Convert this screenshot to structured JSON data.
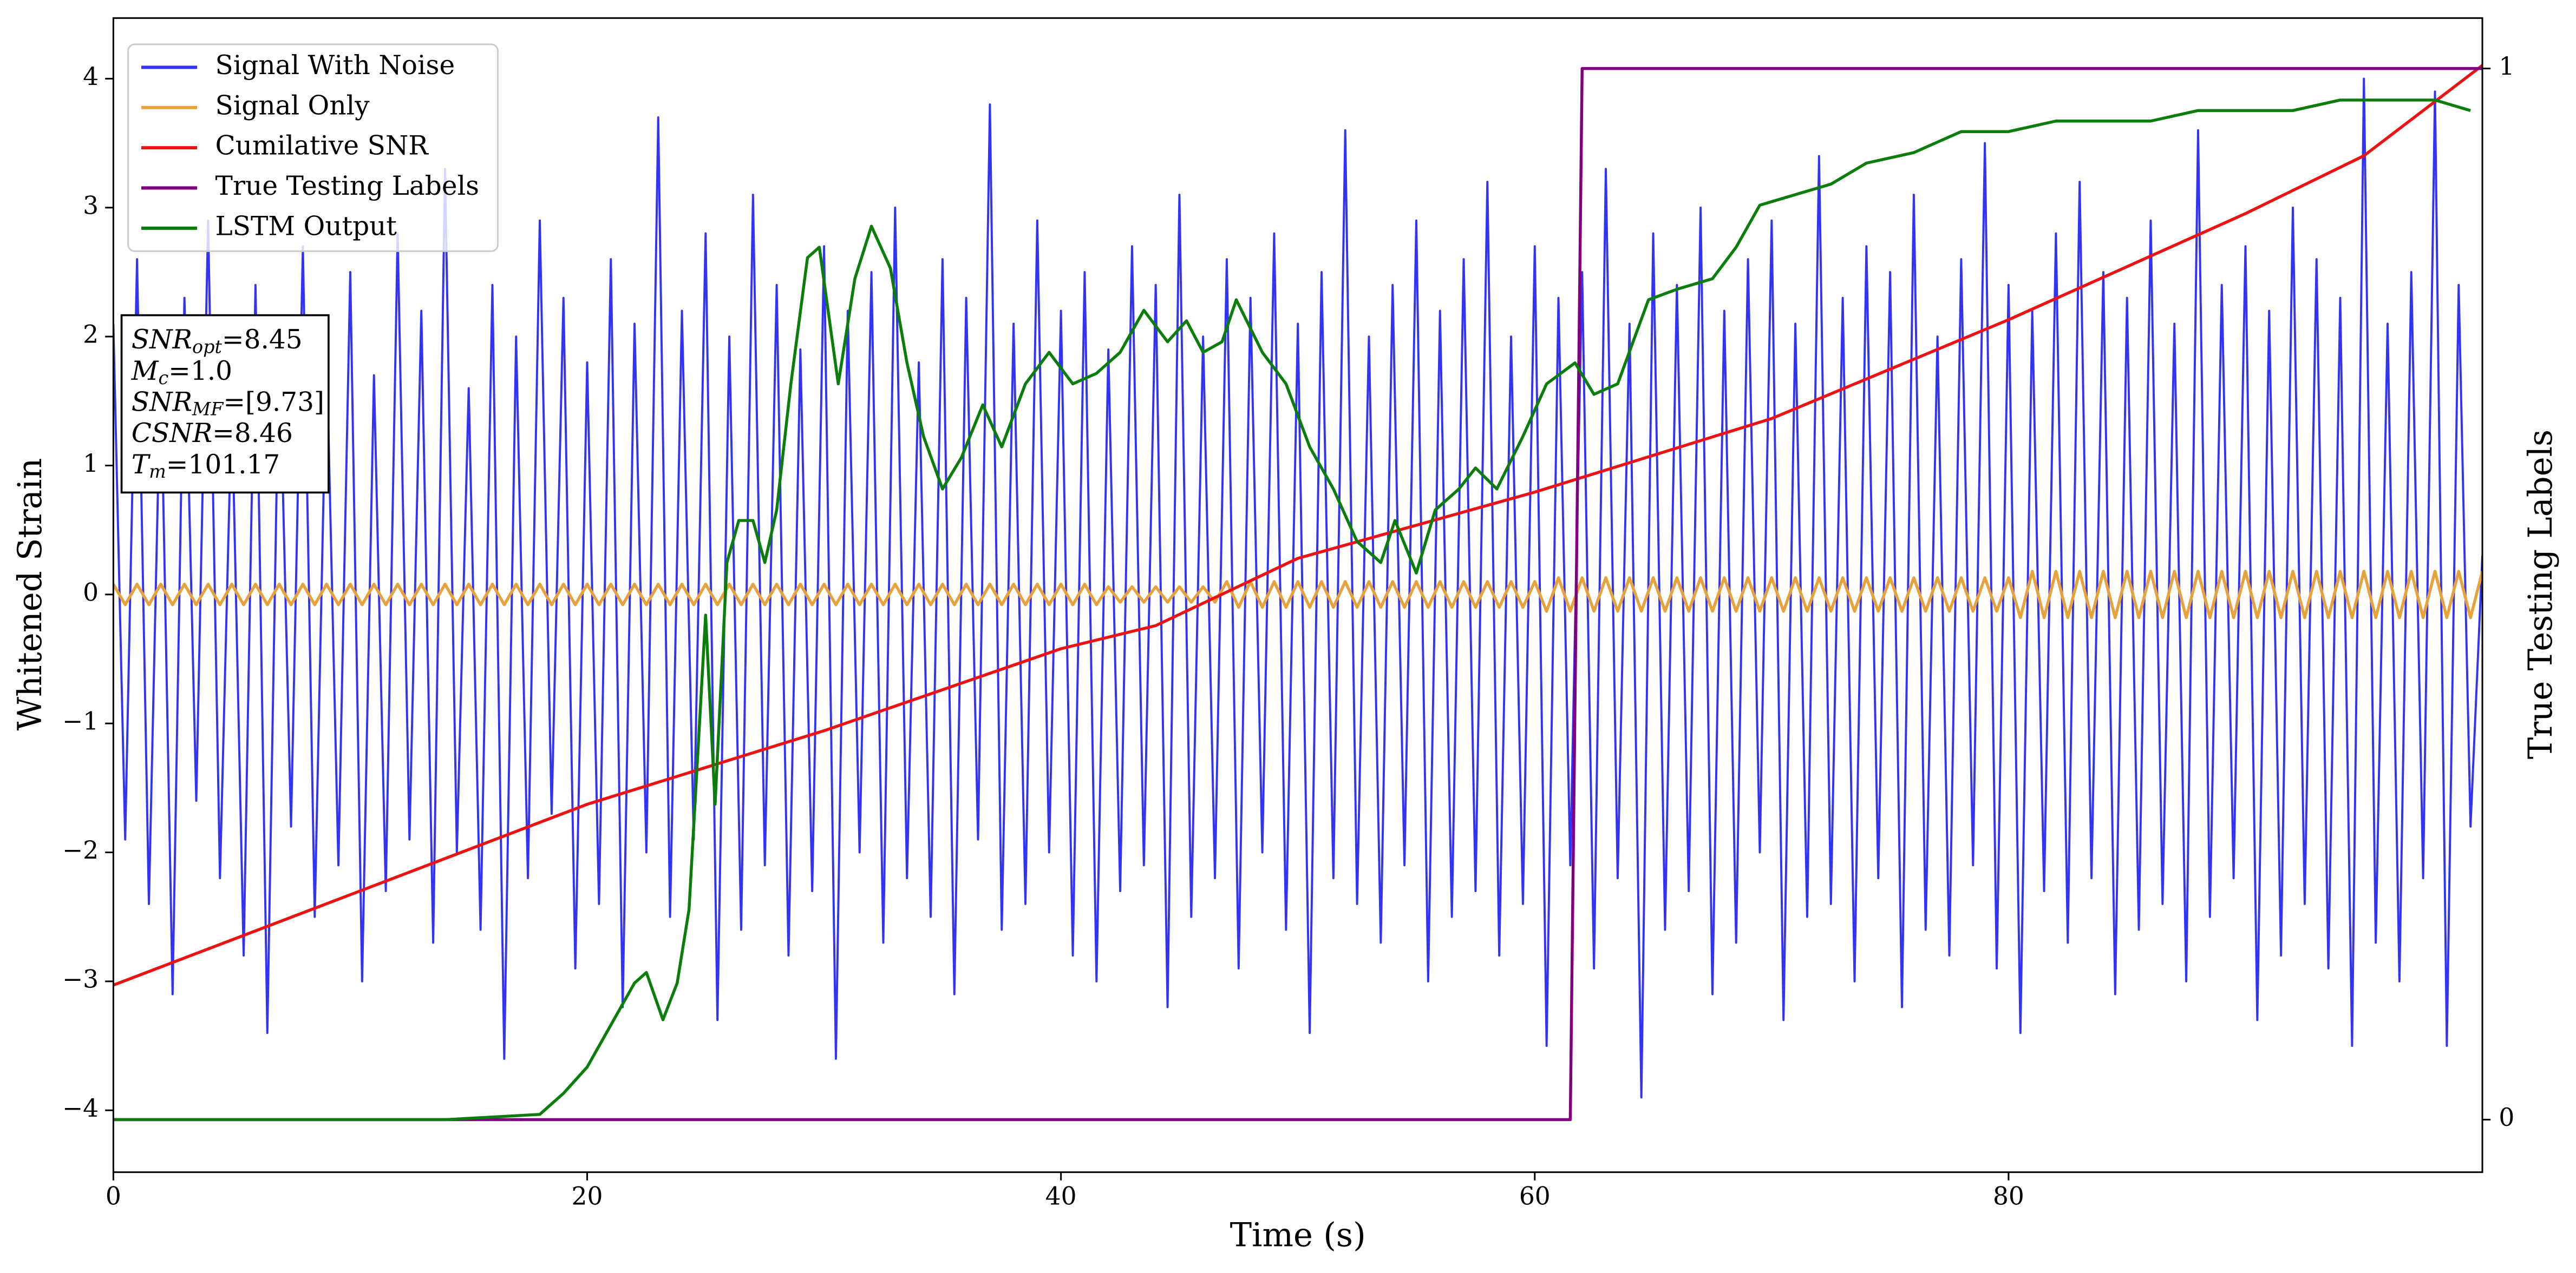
{
  "chart_data": {
    "type": "line",
    "xlabel": "Time (s)",
    "ylabel": "Whitened Strain",
    "y2label": "True Testing Labels",
    "xlim": [
      0,
      100
    ],
    "ylim": [
      -4.48,
      4.47
    ],
    "y2lim": [
      -0.05,
      1.048
    ],
    "xticks": [
      0,
      20,
      40,
      60,
      80
    ],
    "yticks": [
      {
        "value": -4,
        "label": "−4"
      },
      {
        "value": -3,
        "label": "−3"
      },
      {
        "value": -2,
        "label": "−2"
      },
      {
        "value": -1,
        "label": "−1"
      },
      0,
      1,
      2,
      3,
      4
    ],
    "y2ticks": [
      0,
      1
    ],
    "legend": "upper left",
    "x": [
      0,
      0.5,
      1,
      1.5,
      2,
      2.5,
      3,
      3.5,
      4,
      4.5,
      5,
      5.5,
      6,
      6.5,
      7,
      7.5,
      8,
      8.5,
      9,
      9.5,
      10,
      10.5,
      11,
      11.5,
      12,
      12.5,
      13,
      13.5,
      14,
      14.5,
      15,
      15.5,
      16,
      16.5,
      17,
      17.5,
      18,
      18.5,
      19,
      19.5,
      20,
      20.5,
      21,
      21.5,
      22,
      22.5,
      23,
      23.5,
      24,
      24.5,
      25,
      25.5,
      26,
      26.5,
      27,
      27.5,
      28,
      28.5,
      29,
      29.5,
      30,
      30.5,
      31,
      31.5,
      32,
      32.5,
      33,
      33.5,
      34,
      34.5,
      35,
      35.5,
      36,
      36.5,
      37,
      37.5,
      38,
      38.5,
      39,
      39.5,
      40,
      40.5,
      41,
      41.5,
      42,
      42.5,
      43,
      43.5,
      44,
      44.5,
      45,
      45.5,
      46,
      46.5,
      47,
      47.5,
      48,
      48.5,
      49,
      49.5,
      50,
      50.5,
      51,
      51.5,
      52,
      52.5,
      53,
      53.5,
      54,
      54.5,
      55,
      55.5,
      56,
      56.5,
      57,
      57.5,
      58,
      58.5,
      59,
      59.5,
      60,
      60.5,
      61,
      61.5,
      62,
      62.5,
      63,
      63.5,
      64,
      64.5,
      65,
      65.5,
      66,
      66.5,
      67,
      67.5,
      68,
      68.5,
      69,
      69.5,
      70,
      70.5,
      71,
      71.5,
      72,
      72.5,
      73,
      73.5,
      74,
      74.5,
      75,
      75.5,
      76,
      76.5,
      77,
      77.5,
      78,
      78.5,
      79,
      79.5,
      80,
      80.5,
      81,
      81.5,
      82,
      82.5,
      83,
      83.5,
      84,
      84.5,
      85,
      85.5,
      86,
      86.5,
      87,
      87.5,
      88,
      88.5,
      89,
      89.5,
      90,
      90.5,
      91,
      91.5,
      92,
      92.5,
      93,
      93.5,
      94,
      94.5,
      95,
      95.5,
      96,
      96.5,
      97,
      97.5,
      98,
      98.5,
      99,
      99.5,
      100
    ],
    "series": [
      {
        "name": "Signal With Noise",
        "color": "#3333f5",
        "values": [
          2.1,
          -1.9,
          2.6,
          -2.4,
          1.8,
          -3.1,
          2.3,
          -1.6,
          2.9,
          -2.2,
          1.5,
          -2.8,
          2.4,
          -3.4,
          2.0,
          -1.8,
          2.7,
          -2.5,
          1.9,
          -2.1,
          2.5,
          -3.0,
          1.7,
          -2.3,
          2.8,
          -1.9,
          2.2,
          -2.7,
          3.3,
          -2.0,
          1.6,
          -2.6,
          2.4,
          -3.6,
          2.0,
          -2.2,
          2.9,
          -1.7,
          2.3,
          -2.9,
          1.8,
          -2.4,
          2.6,
          -3.2,
          2.1,
          -2.0,
          3.7,
          -2.5,
          2.2,
          -1.9,
          2.8,
          -3.3,
          2.0,
          -2.6,
          3.1,
          -2.1,
          2.4,
          -2.8,
          1.9,
          -2.3,
          2.7,
          -3.6,
          2.2,
          -2.0,
          2.5,
          -2.7,
          3.0,
          -2.2,
          1.8,
          -2.5,
          2.6,
          -3.1,
          2.3,
          -1.9,
          3.8,
          -2.6,
          2.1,
          -2.4,
          2.9,
          -2.0,
          2.2,
          -2.8,
          2.5,
          -3.0,
          1.9,
          -2.3,
          2.7,
          -2.1,
          2.4,
          -3.2,
          3.1,
          -2.5,
          2.0,
          -2.2,
          2.6,
          -2.9,
          2.3,
          -2.0,
          2.8,
          -2.6,
          2.1,
          -3.4,
          2.5,
          -2.2,
          3.6,
          -2.4,
          2.0,
          -2.7,
          2.4,
          -2.1,
          2.9,
          -3.0,
          2.2,
          -2.5,
          2.6,
          -2.3,
          3.2,
          -2.8,
          2.0,
          -2.4,
          2.7,
          -3.5,
          2.3,
          -2.1,
          2.5,
          -2.9,
          3.3,
          -2.2,
          2.1,
          -3.9,
          2.8,
          -2.6,
          2.4,
          -2.3,
          3.0,
          -3.1,
          2.2,
          -2.7,
          2.6,
          -2.0,
          2.9,
          -3.3,
          2.1,
          -2.5,
          3.4,
          -2.4,
          2.3,
          -3.0,
          2.7,
          -2.2,
          2.5,
          -3.2,
          3.1,
          -2.6,
          2.0,
          -2.8,
          2.6,
          -2.1,
          3.5,
          -2.9,
          2.4,
          -3.4,
          2.2,
          -2.3,
          2.8,
          -2.7,
          3.2,
          -2.2,
          2.5,
          -3.1,
          2.3,
          -2.6,
          2.9,
          -2.4,
          2.1,
          -3.0,
          3.6,
          -2.5,
          2.4,
          -2.2,
          2.7,
          -3.3,
          2.2,
          -2.8,
          3.0,
          -2.4,
          2.6,
          -2.9,
          2.3,
          -3.5,
          4.0,
          -2.7,
          2.1,
          -3.0,
          2.5,
          -2.2,
          3.9,
          -3.5,
          2.4,
          -1.8,
          0.3
        ]
      },
      {
        "name": "Signal Only",
        "color": "#e8a23c",
        "values": [
          0.08,
          -0.08,
          0.08,
          -0.08,
          0.08,
          -0.08,
          0.08,
          -0.08,
          0.08,
          -0.08,
          0.08,
          -0.08,
          0.08,
          -0.08,
          0.08,
          -0.08,
          0.08,
          -0.08,
          0.08,
          -0.08,
          0.08,
          -0.08,
          0.08,
          -0.08,
          0.08,
          -0.08,
          0.08,
          -0.08,
          0.08,
          -0.08,
          0.08,
          -0.08,
          0.08,
          -0.08,
          0.08,
          -0.08,
          0.08,
          -0.08,
          0.08,
          -0.08,
          0.08,
          -0.08,
          0.08,
          -0.08,
          0.08,
          -0.08,
          0.08,
          -0.08,
          0.08,
          -0.08,
          0.08,
          -0.08,
          0.08,
          -0.08,
          0.08,
          -0.08,
          0.08,
          -0.08,
          0.08,
          -0.08,
          0.08,
          -0.08,
          0.08,
          -0.08,
          0.08,
          -0.08,
          0.08,
          -0.08,
          0.08,
          -0.08,
          0.08,
          -0.08,
          0.08,
          -0.08,
          0.08,
          -0.08,
          0.08,
          -0.08,
          0.08,
          -0.08,
          0.08,
          -0.08,
          0.08,
          -0.08,
          0.06,
          -0.06,
          0.06,
          -0.06,
          0.06,
          -0.06,
          0.06,
          -0.06,
          0.06,
          -0.06,
          0.1,
          -0.1,
          0.1,
          -0.1,
          0.1,
          -0.1,
          0.1,
          -0.1,
          0.1,
          -0.1,
          0.1,
          -0.1,
          0.1,
          -0.1,
          0.1,
          -0.1,
          0.1,
          -0.1,
          0.1,
          -0.1,
          0.1,
          -0.1,
          0.1,
          -0.1,
          0.1,
          -0.1,
          0.1,
          -0.13,
          0.13,
          -0.13,
          0.13,
          -0.13,
          0.13,
          -0.13,
          0.13,
          -0.13,
          0.13,
          -0.13,
          0.13,
          -0.13,
          0.13,
          -0.13,
          0.13,
          -0.13,
          0.13,
          -0.13,
          0.13,
          -0.13,
          0.13,
          -0.13,
          0.13,
          -0.13,
          0.13,
          -0.13,
          0.13,
          -0.13,
          0.13,
          -0.13,
          0.13,
          -0.13,
          0.13,
          -0.13,
          0.13,
          -0.13,
          0.13,
          -0.13,
          0.13,
          -0.18,
          0.18,
          -0.18,
          0.18,
          -0.18,
          0.18,
          -0.18,
          0.18,
          -0.18,
          0.18,
          -0.18,
          0.18,
          -0.18,
          0.18,
          -0.18,
          0.18,
          -0.18,
          0.18,
          -0.18,
          0.18,
          -0.18,
          0.18,
          -0.18,
          0.18,
          -0.18,
          0.18,
          -0.18,
          0.18,
          -0.18,
          0.18,
          -0.18,
          0.18,
          -0.18,
          0.18,
          -0.18,
          0.18,
          -0.18,
          0.18,
          -0.18,
          0.18
        ]
      },
      {
        "name": "Cumilative SNR",
        "color": "#ee1111",
        "axis": "y2",
        "x": [
          0,
          10,
          20,
          30,
          40,
          44,
          50,
          60,
          70,
          80,
          90,
          95,
          100
        ],
        "values": [
          0.128,
          0.214,
          0.3,
          0.37,
          0.448,
          0.47,
          0.534,
          0.597,
          0.667,
          0.761,
          0.862,
          0.917,
          1.003
        ]
      },
      {
        "name": "True Testing Labels",
        "color": "#800080",
        "axis": "y2",
        "x": [
          0,
          61.5,
          62,
          100
        ],
        "values": [
          0,
          0,
          1,
          1
        ]
      },
      {
        "name": "LSTM Output",
        "color": "#0a7d0a",
        "axis": "y2",
        "x": [
          0,
          14,
          18,
          19,
          20,
          21,
          22,
          22.5,
          23.2,
          23.8,
          24.3,
          25,
          25.4,
          25.9,
          26.4,
          27,
          27.5,
          28,
          28.6,
          29.3,
          29.8,
          30.6,
          31.3,
          32,
          32.8,
          33.5,
          34.2,
          35,
          35.8,
          36.7,
          37.5,
          38.5,
          39.5,
          40.5,
          41.5,
          42.5,
          43.5,
          44.5,
          45.3,
          46,
          46.8,
          47.4,
          48.5,
          49.5,
          50.5,
          51.5,
          52.5,
          53.5,
          54.1,
          55,
          55.8,
          56.8,
          57.5,
          58.4,
          59.5,
          60.5,
          61.7,
          62.5,
          63.5,
          64.8,
          66,
          67.5,
          68.5,
          69.5,
          71,
          72.5,
          74,
          76,
          78,
          80,
          82,
          84,
          86,
          88,
          90,
          92,
          94,
          96,
          98,
          99.5
        ],
        "values": [
          0,
          0,
          0.005,
          0.025,
          0.05,
          0.09,
          0.13,
          0.14,
          0.095,
          0.13,
          0.2,
          0.48,
          0.3,
          0.53,
          0.57,
          0.57,
          0.53,
          0.58,
          0.7,
          0.82,
          0.83,
          0.7,
          0.8,
          0.85,
          0.81,
          0.72,
          0.65,
          0.6,
          0.63,
          0.68,
          0.64,
          0.7,
          0.73,
          0.7,
          0.71,
          0.73,
          0.77,
          0.74,
          0.76,
          0.73,
          0.74,
          0.78,
          0.73,
          0.7,
          0.64,
          0.6,
          0.55,
          0.53,
          0.57,
          0.52,
          0.58,
          0.6,
          0.62,
          0.6,
          0.65,
          0.7,
          0.72,
          0.69,
          0.7,
          0.78,
          0.79,
          0.8,
          0.83,
          0.87,
          0.88,
          0.89,
          0.91,
          0.92,
          0.94,
          0.94,
          0.95,
          0.95,
          0.95,
          0.96,
          0.96,
          0.96,
          0.97,
          0.97,
          0.97,
          0.96
        ]
      }
    ],
    "annotation": [
      {
        "text": "SNR",
        "sub": "opt",
        "value": "=8.45"
      },
      {
        "text": "M",
        "sub": "c",
        "value": "=1.0"
      },
      {
        "text": "SNR",
        "sub": "MF",
        "value": "=[9.73]"
      },
      {
        "text": "CSNR",
        "value": "=8.46"
      },
      {
        "text": "T",
        "sub": "m",
        "value": "=101.17"
      }
    ]
  }
}
